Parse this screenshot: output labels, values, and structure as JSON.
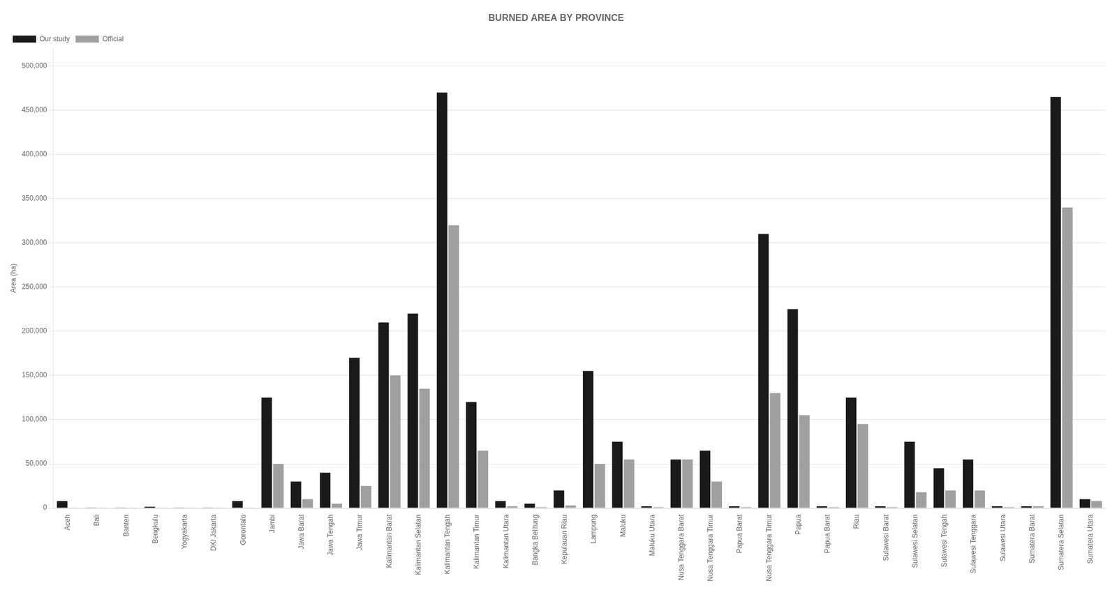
{
  "chart_data": {
    "type": "bar",
    "title": "BURNED AREA BY PROVINCE",
    "ylabel": "Area (ha)",
    "categories": [
      "Aceh",
      "Bali",
      "Banten",
      "Bengkulu",
      "Yogyakarta",
      "DKI Jakarta",
      "Gorontalo",
      "Jambi",
      "Jawa Barat",
      "Jawa Tengah",
      "Jawa Timur",
      "Kalimantan Barat",
      "Kalimantan Selatan",
      "Kalimantan Tengah",
      "Kalimantan Timur",
      "Kalimantan Utara",
      "Bangka Belitung",
      "Kepulauan Riau",
      "Lampung",
      "Maluku",
      "Maluku Utara",
      "Nusa Tenggara Barat",
      "Nusa Tenggara Timur",
      "Papua Barat",
      "Nusa Tenggara Timur",
      "Papua",
      "Papua Barat",
      "Riau",
      "Sulawesi Barat",
      "Sulawesi Selatan",
      "Sulawesi Tengah",
      "Sulawesi Tenggara",
      "Sulawesi Utara",
      "Sumatera Barat",
      "Sumatera Selatan",
      "Sumatera Utara"
    ],
    "series": [
      {
        "name": "Our study",
        "color": "#1a1a1a",
        "values": [
          8000,
          500,
          500,
          1500,
          500,
          500,
          8000,
          125000,
          30000,
          40000,
          170000,
          210000,
          220000,
          470000,
          120000,
          8000,
          5000,
          20000,
          155000,
          75000,
          2000,
          55000,
          65000,
          2000,
          310000,
          225000,
          2000,
          125000,
          2000,
          75000,
          45000,
          55000,
          2000,
          2000,
          465000,
          10000
        ]
      },
      {
        "name": "Official",
        "color": "#a0a0a0",
        "values": [
          500,
          200,
          200,
          200,
          200,
          200,
          200,
          50000,
          10000,
          5000,
          25000,
          150000,
          135000,
          320000,
          65000,
          2000,
          1000,
          3000,
          50000,
          55000,
          1000,
          55000,
          30000,
          1000,
          130000,
          105000,
          1000,
          95000,
          1000,
          18000,
          20000,
          20000,
          1000,
          2000,
          340000,
          8000
        ]
      }
    ],
    "ylim": [
      0,
      520000
    ],
    "yticks": [
      0,
      {
        "value": 50000,
        "label": "50,000"
      },
      {
        "value": 100000,
        "label": "100,000"
      },
      {
        "value": 150000,
        "label": "150,000"
      },
      {
        "value": 200000,
        "label": "200,000"
      },
      {
        "value": 250000,
        "label": "250,000"
      },
      {
        "value": 300000,
        "label": "300,000"
      },
      {
        "value": 350000,
        "label": "350,000"
      },
      {
        "value": 400000,
        "label": "400,000"
      },
      {
        "value": 450000,
        "label": "450,000"
      },
      {
        "value": 500000,
        "label": "500,000"
      }
    ],
    "grid": true,
    "legend": "upper left"
  }
}
